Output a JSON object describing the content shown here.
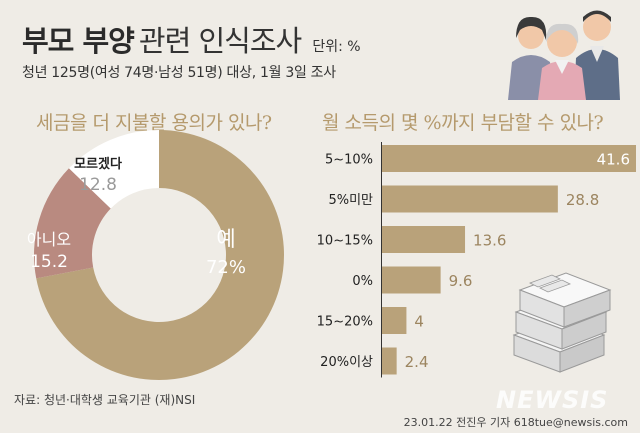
{
  "header": {
    "title_bold": "부모 부양",
    "title_light": "관련 인식조사",
    "unit": "단위: %",
    "subtitle": "청년 125명(여성 74명·남성 51명) 대상, 1월 3일 조사"
  },
  "colors": {
    "gold": "#b9a27a",
    "rose": "#b98a80",
    "white": "#ffffff",
    "background": "#efece6",
    "question": "#b59a6d"
  },
  "chart_data": [
    {
      "type": "pie",
      "title": "세금을 더 지불할 용의가 있나?",
      "categories": [
        "예",
        "아니오",
        "모르겠다"
      ],
      "values": [
        72,
        15.2,
        12.8
      ],
      "value_labels": [
        "72%",
        "15.2",
        "12.8"
      ]
    },
    {
      "type": "bar",
      "title": "월 소득의 몇 %까지 부담할 수 있나?",
      "categories": [
        "5~10%",
        "5%미만",
        "10~15%",
        "0%",
        "15~20%",
        "20%이상"
      ],
      "values": [
        41.6,
        28.8,
        13.6,
        9.6,
        4,
        2.4
      ],
      "value_labels": [
        "41.6",
        "28.8",
        "13.6",
        "9.6",
        "4",
        "2.4"
      ],
      "xlim": [
        0,
        45
      ]
    }
  ],
  "footer": {
    "source": "자료: 청년·대학생 교육기관 (재)NSI",
    "credit": "23.01.22 전진우 기자 618tue@newsis.com",
    "watermark": "NEWSIS"
  },
  "icons": [
    "family-illustration",
    "money-stack-illustration"
  ]
}
